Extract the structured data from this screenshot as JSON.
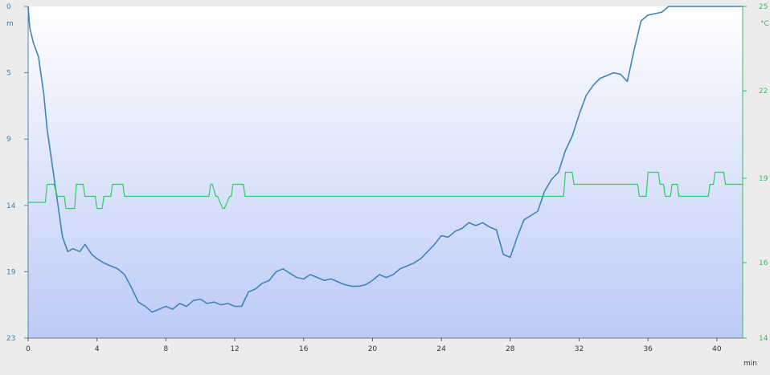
{
  "chart_data": {
    "type": "line",
    "title": "",
    "x_unit": "min",
    "xlim": [
      0,
      41.5
    ],
    "x_ticks": [
      "0",
      "4",
      "8",
      "12",
      "16",
      "20",
      "24",
      "28",
      "32",
      "36",
      "40"
    ],
    "x_tick_values": [
      0,
      4,
      8,
      12,
      16,
      20,
      24,
      28,
      32,
      36,
      40
    ],
    "left_axis": {
      "unit": "m",
      "inverted": true,
      "ylim": [
        0,
        23
      ],
      "ticks": [
        "0",
        "5",
        "9",
        "14",
        "19",
        "23"
      ],
      "tick_values": [
        0,
        4.6,
        9.2,
        13.8,
        18.4,
        23
      ]
    },
    "right_axis": {
      "unit": "°C",
      "ylim": [
        14,
        25
      ],
      "ticks": [
        "25",
        "22",
        "19",
        "16",
        "14"
      ],
      "tick_values": [
        25,
        22.2,
        19.3,
        16.5,
        14
      ]
    },
    "series": [
      {
        "axis": "left",
        "color": "#3f85b5",
        "x": [
          0,
          0.1,
          0.3,
          0.6,
          0.9,
          1.1,
          1.4,
          1.7,
          2.0,
          2.3,
          2.6,
          3.0,
          3.3,
          3.7,
          4.0,
          4.4,
          4.8,
          5.2,
          5.6,
          6.0,
          6.4,
          6.8,
          7.2,
          7.6,
          8.0,
          8.4,
          8.8,
          9.2,
          9.6,
          10.0,
          10.4,
          10.8,
          11.2,
          11.6,
          12.0,
          12.4,
          12.8,
          13.2,
          13.6,
          14.0,
          14.4,
          14.8,
          15.2,
          15.6,
          16.0,
          16.4,
          16.8,
          17.2,
          17.6,
          18.0,
          18.4,
          18.8,
          19.2,
          19.6,
          20.0,
          20.4,
          20.8,
          21.2,
          21.6,
          22.0,
          22.4,
          22.8,
          23.2,
          23.6,
          24.0,
          24.4,
          24.8,
          25.2,
          25.6,
          26.0,
          26.4,
          26.8,
          27.2,
          27.6,
          28.0,
          28.4,
          28.8,
          29.2,
          29.6,
          30.0,
          30.4,
          30.8,
          31.2,
          31.6,
          32.0,
          32.4,
          32.8,
          33.2,
          33.6,
          34.0,
          34.4,
          34.8,
          35.2,
          35.6,
          36.0,
          36.4,
          36.8,
          37.2,
          37.6,
          38.0,
          38.4,
          38.8,
          39.2,
          39.6,
          40.0,
          40.4,
          40.8,
          41.2,
          41.5
        ],
        "y": [
          0,
          1.5,
          2.5,
          3.5,
          6.0,
          8.5,
          11.0,
          13.5,
          16.0,
          17.0,
          16.8,
          17.0,
          16.5,
          17.2,
          17.5,
          17.8,
          18.0,
          18.2,
          18.6,
          19.5,
          20.5,
          20.8,
          21.2,
          21.0,
          20.8,
          21.0,
          20.6,
          20.8,
          20.4,
          20.3,
          20.6,
          20.5,
          20.7,
          20.6,
          20.8,
          20.8,
          19.8,
          19.6,
          19.2,
          19.0,
          18.4,
          18.2,
          18.5,
          18.8,
          18.9,
          18.6,
          18.8,
          19.0,
          18.9,
          19.1,
          19.3,
          19.4,
          19.4,
          19.3,
          19.0,
          18.6,
          18.8,
          18.6,
          18.2,
          18.0,
          17.8,
          17.5,
          17.0,
          16.5,
          15.9,
          16.0,
          15.6,
          15.4,
          15.0,
          15.2,
          15.0,
          15.3,
          15.5,
          17.2,
          17.4,
          16.0,
          14.8,
          14.5,
          14.2,
          12.8,
          12.0,
          11.5,
          10.0,
          9.0,
          7.5,
          6.2,
          5.5,
          5.0,
          4.8,
          4.6,
          4.7,
          5.2,
          3.0,
          1.0,
          0.6,
          0.5,
          0.4,
          0,
          0,
          0,
          0,
          0,
          0,
          0,
          0,
          0,
          0,
          0,
          0
        ]
      },
      {
        "axis": "right",
        "color": "#2ecc60",
        "x": [
          0,
          1.0,
          1.1,
          1.5,
          1.7,
          2.1,
          2.2,
          2.7,
          2.8,
          3.2,
          3.3,
          3.9,
          4.0,
          4.3,
          4.4,
          4.8,
          4.9,
          5.5,
          5.6,
          10.5,
          10.6,
          10.7,
          10.9,
          11.0,
          11.3,
          11.4,
          11.7,
          11.8,
          11.9,
          12.5,
          12.6,
          12.9,
          13.0,
          30.6,
          30.7,
          31.1,
          31.2,
          31.6,
          31.7,
          35.4,
          35.5,
          35.9,
          36.0,
          36.6,
          36.7,
          36.9,
          37.0,
          37.3,
          37.4,
          37.7,
          37.8,
          39.5,
          39.6,
          39.8,
          39.9,
          40.4,
          40.5,
          41.5
        ],
        "y": [
          18.5,
          18.5,
          19.1,
          19.1,
          18.7,
          18.7,
          18.3,
          18.3,
          19.1,
          19.1,
          18.7,
          18.7,
          18.3,
          18.3,
          18.7,
          18.7,
          19.1,
          19.1,
          18.7,
          18.7,
          19.1,
          19.1,
          18.7,
          18.7,
          18.3,
          18.3,
          18.7,
          18.7,
          19.1,
          19.1,
          18.7,
          18.7,
          18.7,
          18.7,
          18.7,
          18.7,
          19.5,
          19.5,
          19.1,
          19.1,
          18.7,
          18.7,
          19.5,
          19.5,
          19.1,
          19.1,
          18.7,
          18.7,
          19.1,
          19.1,
          18.7,
          18.7,
          19.1,
          19.1,
          19.5,
          19.5,
          19.1,
          19.1
        ]
      }
    ]
  }
}
